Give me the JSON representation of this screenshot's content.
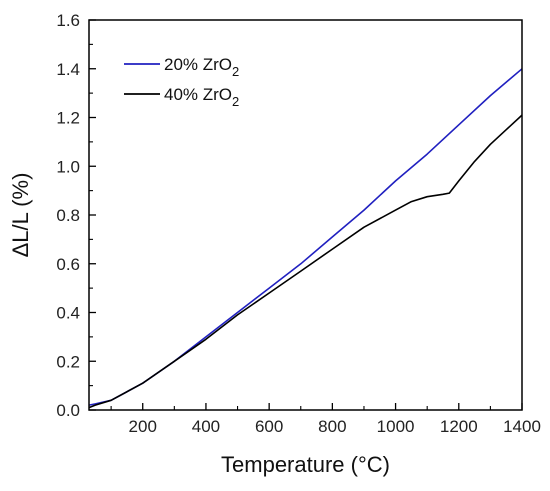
{
  "chart_data": {
    "type": "line",
    "title": "",
    "xlabel": "Temperature (°C)",
    "ylabel": "ΔL/L (%)",
    "xlim": [
      30,
      1400
    ],
    "ylim": [
      0.0,
      1.6
    ],
    "x_ticks": [
      "200",
      "400",
      "600",
      "800",
      "1000",
      "1200",
      "1400"
    ],
    "y_ticks": [
      "0.0",
      "0.2",
      "0.4",
      "0.6",
      "0.8",
      "1.0",
      "1.2",
      "1.4",
      "1.6"
    ],
    "grid": false,
    "legend_position": "top-left",
    "series": [
      {
        "name": "20% ZrO2",
        "color": "#2020c0",
        "x": [
          30,
          50,
          100,
          200,
          300,
          400,
          500,
          600,
          700,
          800,
          900,
          1000,
          1100,
          1200,
          1300,
          1400
        ],
        "y": [
          0.02,
          0.025,
          0.04,
          0.11,
          0.2,
          0.3,
          0.4,
          0.5,
          0.6,
          0.71,
          0.82,
          0.94,
          1.05,
          1.17,
          1.29,
          1.4
        ]
      },
      {
        "name": "40% ZrO2",
        "color": "#000000",
        "x": [
          30,
          50,
          100,
          200,
          300,
          400,
          500,
          600,
          700,
          800,
          900,
          1000,
          1050,
          1100,
          1150,
          1170,
          1200,
          1250,
          1300,
          1350,
          1400
        ],
        "y": [
          0.01,
          0.02,
          0.04,
          0.11,
          0.2,
          0.29,
          0.39,
          0.48,
          0.57,
          0.66,
          0.75,
          0.82,
          0.855,
          0.875,
          0.885,
          0.89,
          0.94,
          1.02,
          1.09,
          1.15,
          1.21
        ]
      }
    ]
  }
}
